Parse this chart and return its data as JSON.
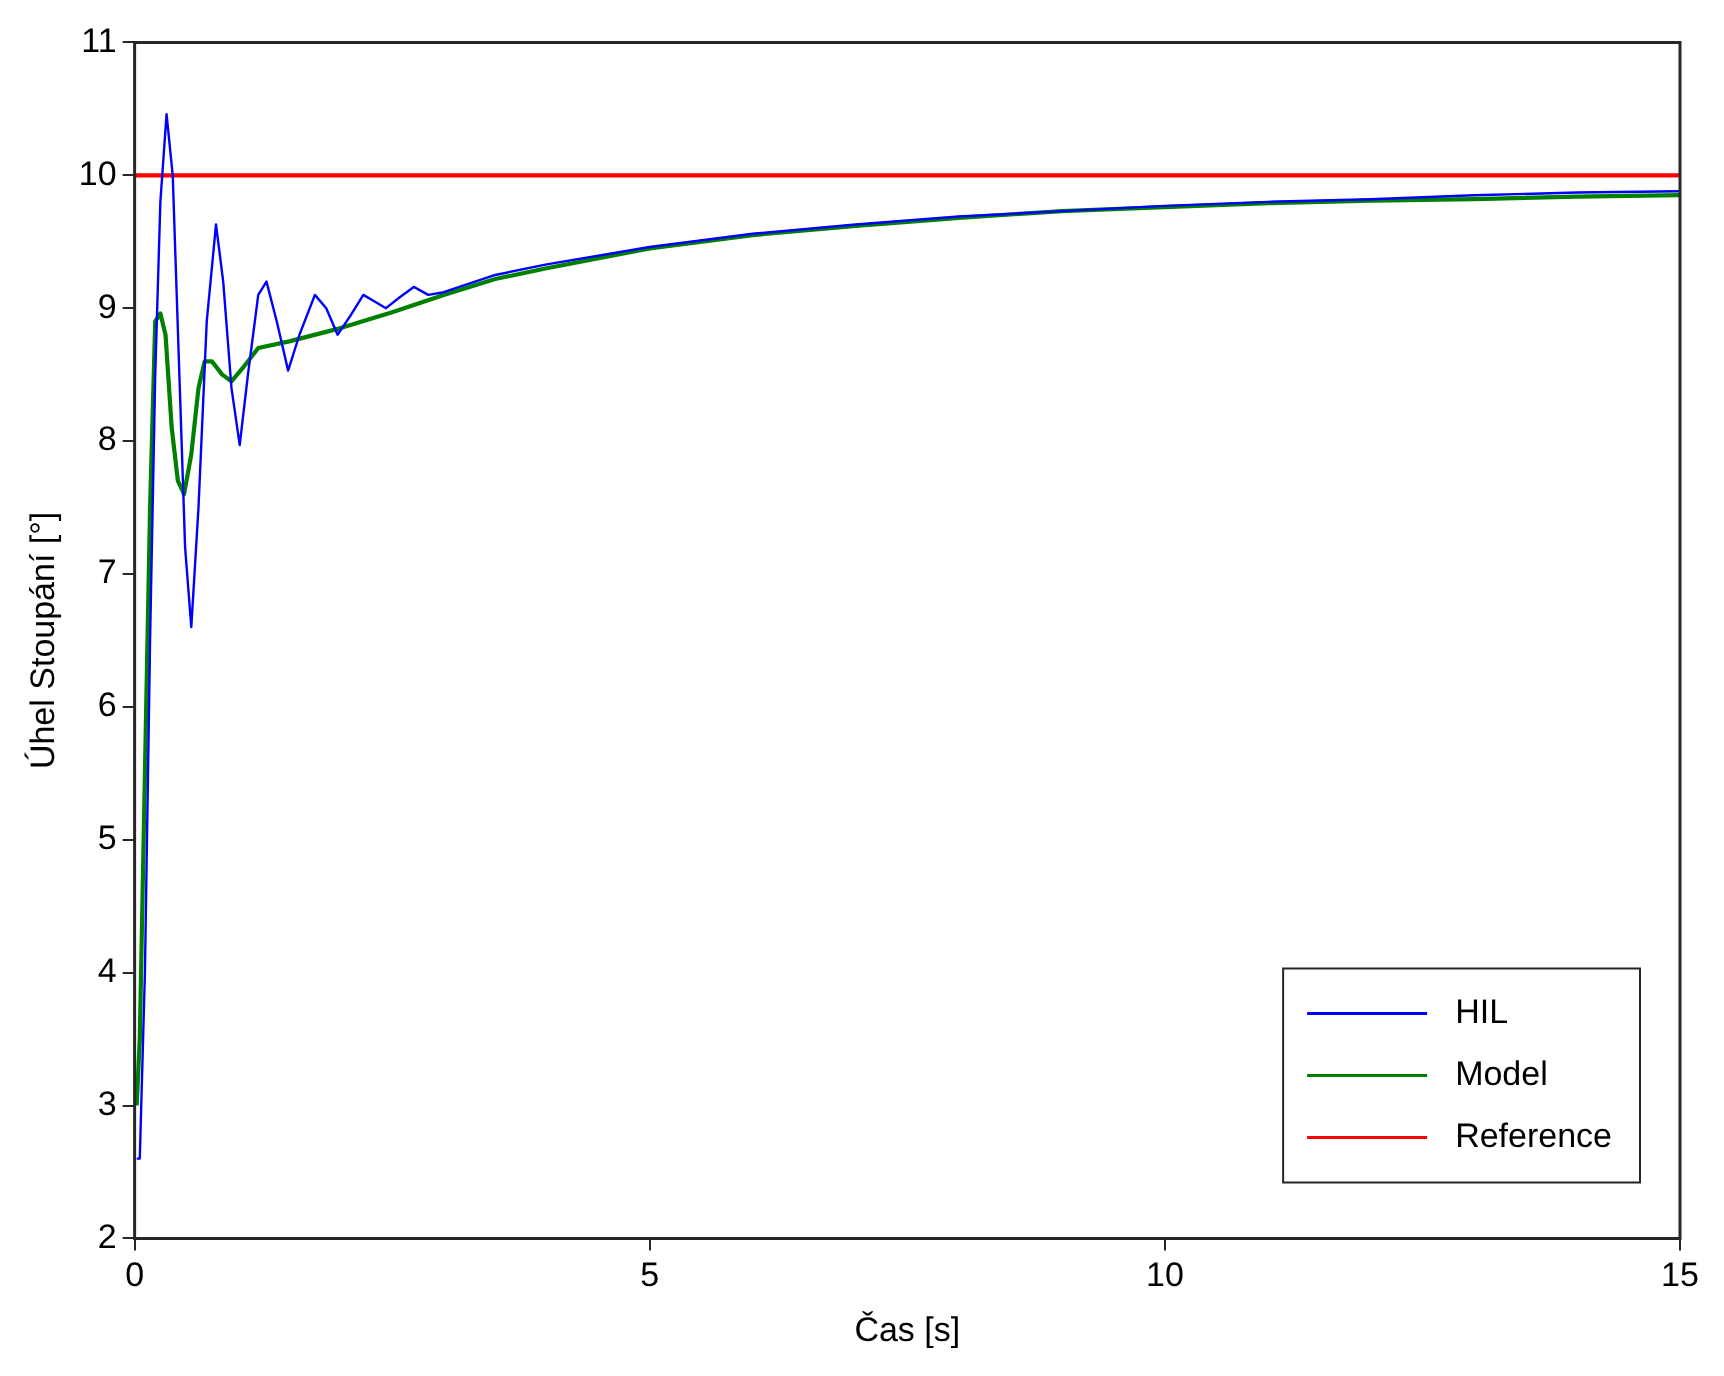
{
  "chart_data": {
    "type": "line",
    "xlabel": "Čas [s]",
    "ylabel": "Úhel Stoupání [°]",
    "xlim": [
      0,
      15
    ],
    "ylim": [
      2,
      11
    ],
    "xticks": [
      0,
      5,
      10,
      15
    ],
    "yticks": [
      2,
      3,
      4,
      5,
      6,
      7,
      8,
      9,
      10,
      11
    ],
    "grid": false,
    "legend": "bottom right",
    "marker": "none",
    "line_style": "solid",
    "series": [
      {
        "name": "HIL",
        "color": "#0000ff",
        "x": [
          0.02,
          0.05,
          0.1,
          0.15,
          0.2,
          0.25,
          0.31,
          0.37,
          0.43,
          0.49,
          0.55,
          0.62,
          0.7,
          0.79,
          0.86,
          0.94,
          1.02,
          1.1,
          1.2,
          1.28,
          1.38,
          1.49,
          1.6,
          1.75,
          1.86,
          1.97,
          2.1,
          2.22,
          2.33,
          2.44,
          2.57,
          2.71,
          2.85,
          3.0,
          3.5,
          4.0,
          5.0,
          6.0,
          7.0,
          8.0,
          9.0,
          10.0,
          11.0,
          12.0,
          13.0,
          14.0,
          15.0
        ],
        "values": [
          2.6,
          2.6,
          4.0,
          6.5,
          8.5,
          9.8,
          10.46,
          10.0,
          8.6,
          7.2,
          6.6,
          7.5,
          8.9,
          9.63,
          9.2,
          8.4,
          7.97,
          8.5,
          9.1,
          9.2,
          8.9,
          8.53,
          8.8,
          9.1,
          9.0,
          8.8,
          8.95,
          9.1,
          9.05,
          9.0,
          9.08,
          9.16,
          9.1,
          9.12,
          9.25,
          9.33,
          9.46,
          9.56,
          9.63,
          9.69,
          9.73,
          9.77,
          9.8,
          9.82,
          9.85,
          9.87,
          9.88
        ]
      },
      {
        "name": "Model",
        "color": "#008000",
        "x": [
          0.02,
          0.05,
          0.1,
          0.15,
          0.2,
          0.25,
          0.3,
          0.36,
          0.42,
          0.48,
          0.55,
          0.62,
          0.68,
          0.75,
          0.85,
          0.94,
          1.05,
          1.2,
          1.5,
          2.0,
          2.5,
          3.0,
          3.5,
          4.0,
          5.0,
          6.0,
          7.0,
          8.0,
          9.0,
          10.0,
          11.0,
          12.0,
          13.0,
          14.0,
          15.0
        ],
        "values": [
          3.0,
          3.5,
          5.5,
          7.5,
          8.9,
          8.96,
          8.8,
          8.1,
          7.7,
          7.6,
          7.9,
          8.4,
          8.6,
          8.6,
          8.5,
          8.45,
          8.55,
          8.7,
          8.75,
          8.85,
          8.97,
          9.1,
          9.22,
          9.3,
          9.45,
          9.55,
          9.62,
          9.68,
          9.73,
          9.76,
          9.79,
          9.81,
          9.82,
          9.84,
          9.85
        ]
      },
      {
        "name": "Reference",
        "color": "#ff0000",
        "x": [
          0,
          15
        ],
        "values": [
          10,
          10
        ]
      }
    ]
  }
}
